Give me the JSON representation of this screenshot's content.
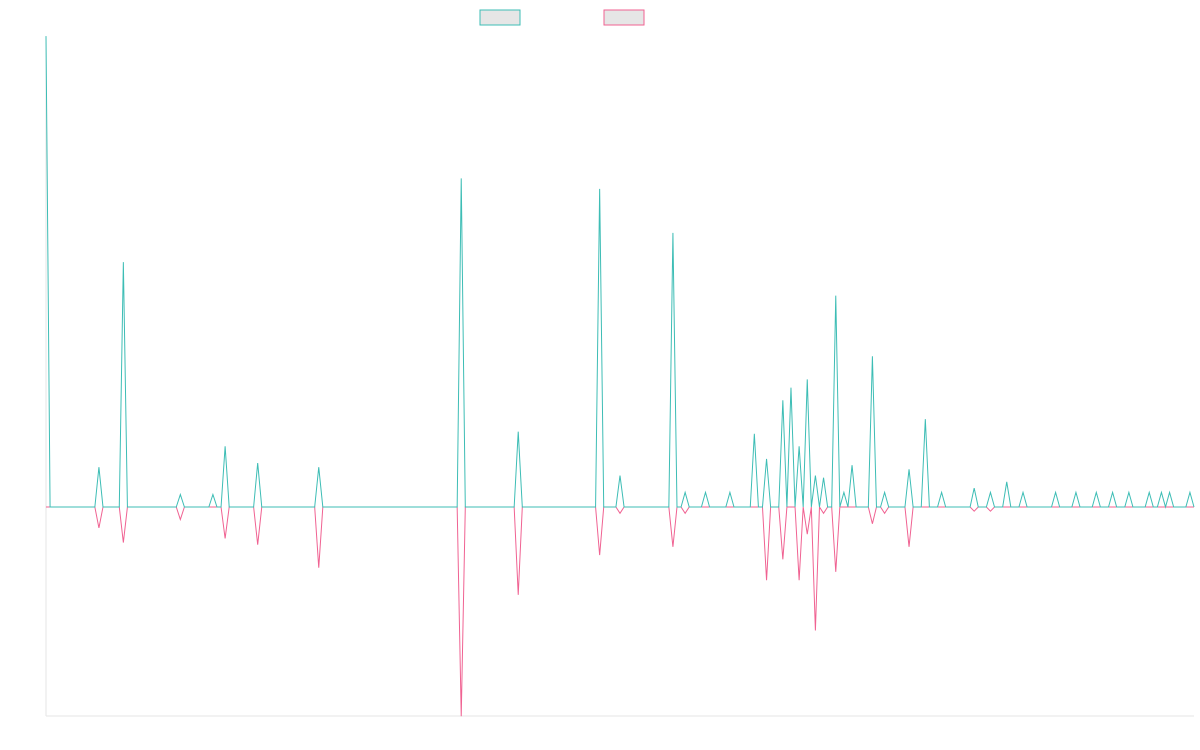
{
  "chart_data": {
    "type": "line",
    "title": "",
    "xlabel": "",
    "ylabel": "",
    "grid": false,
    "legend_position": "top-center",
    "ylim": [
      -100,
      225
    ],
    "x_count": 283,
    "colors": {
      "series_a": "#3dbdb5",
      "series_b": "#f06292",
      "legend_fill": "#e6e6e6",
      "axis": "#e6e6e6"
    },
    "series": [
      {
        "name": "",
        "color": "#3dbdb5",
        "values": {
          "0": 225,
          "13": 19,
          "19": 117,
          "33": 6,
          "41": 6,
          "44": 29,
          "52": 21,
          "67": 19,
          "102": 157,
          "116": 36,
          "136": 152,
          "141": 15,
          "154": 131,
          "157": 7,
          "162": 7,
          "168": 7,
          "174": 35,
          "177": 23,
          "181": 51,
          "183": 57,
          "185": 29,
          "187": 61,
          "189": 15,
          "191": 14,
          "194": 101,
          "196": 7,
          "198": 20,
          "203": 72,
          "206": 7,
          "212": 18,
          "216": 42,
          "220": 7,
          "228": 9,
          "232": 7,
          "236": 12,
          "240": 7,
          "248": 7,
          "253": 7,
          "258": 7,
          "262": 7,
          "266": 7,
          "271": 7,
          "274": 7,
          "276": 7,
          "281": 7
        }
      },
      {
        "name": "",
        "color": "#f06292",
        "values": {
          "13": -10,
          "19": -17,
          "33": -6,
          "44": -15,
          "52": -18,
          "67": -29,
          "102": -100,
          "116": -42,
          "136": -23,
          "141": -3,
          "154": -19,
          "157": -3,
          "177": -35,
          "181": -25,
          "185": -35,
          "187": -13,
          "189": -59,
          "191": -3,
          "194": -31,
          "203": -8,
          "206": -3,
          "212": -19,
          "228": -2,
          "232": -2
        }
      }
    ]
  }
}
